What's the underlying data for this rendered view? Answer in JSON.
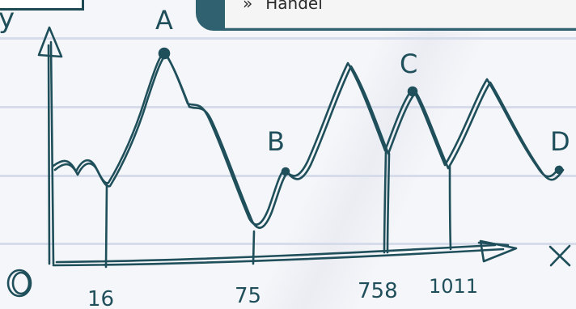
{
  "breadcrumb": {
    "separator": "»",
    "label": "Handel"
  },
  "axes": {
    "origin": "O",
    "y": "y",
    "x": "X"
  },
  "points": [
    "A",
    "B",
    "C",
    "D"
  ],
  "ticks": [
    "16",
    "75",
    "758",
    "1011"
  ],
  "colors": {
    "ink": "#1f4f5a",
    "rule": "#d7dcea",
    "banner": "#2f6170",
    "paper": "#f5f6f9"
  }
}
